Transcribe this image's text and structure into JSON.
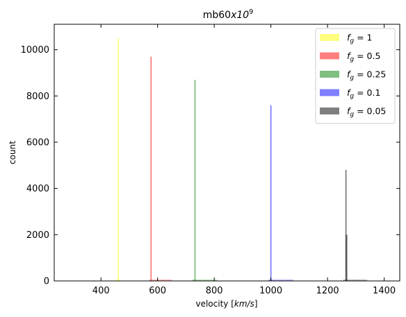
{
  "chart_data": {
    "type": "bar",
    "title": "mb60",
    "title_math": "x10",
    "title_sup": "9",
    "xlabel_prefix": "velocity [",
    "xlabel_math": "km/s",
    "xlabel_suffix": "]",
    "ylabel": "count",
    "xlim": [
      235,
      1455
    ],
    "ylim": [
      0,
      11100
    ],
    "xticks": [
      400,
      600,
      800,
      1000,
      1200,
      1400
    ],
    "yticks": [
      0,
      2000,
      4000,
      6000,
      8000,
      10000
    ],
    "tick_direction": "in",
    "grid": false,
    "legend_position": "top-right",
    "series": [
      {
        "name": "f_g = 1",
        "legend_symbol": "f",
        "legend_sub": "g",
        "legend_value": " = 1",
        "color": "#ffff00",
        "opacity": 0.5,
        "x": 461,
        "value": 10500,
        "spread": [
          450,
          470
        ]
      },
      {
        "name": "f_g = 0.5",
        "legend_symbol": "f",
        "legend_sub": "g",
        "legend_value": " = 0.5",
        "color": "#ff0000",
        "opacity": 0.5,
        "x": 577,
        "value": 9700,
        "spread": [
          570,
          650
        ]
      },
      {
        "name": "f_g = 0.25",
        "legend_symbol": "f",
        "legend_sub": "g",
        "legend_value": " = 0.25",
        "color": "#008000",
        "opacity": 0.5,
        "x": 732,
        "value": 8700,
        "spread": [
          720,
          810
        ]
      },
      {
        "name": "f_g = 0.1",
        "legend_symbol": "f",
        "legend_sub": "g",
        "legend_value": " = 0.1",
        "color": "#0000ff",
        "opacity": 0.5,
        "x": 1000,
        "value": 7600,
        "spread": [
          990,
          1080
        ]
      },
      {
        "name": "f_g = 0.05",
        "legend_symbol": "f",
        "legend_sub": "g",
        "legend_value": " = 0.05",
        "color": "#000000",
        "opacity": 0.5,
        "x": 1265,
        "value": 4800,
        "second_value": 2000,
        "spread": [
          1255,
          1340
        ]
      }
    ]
  }
}
